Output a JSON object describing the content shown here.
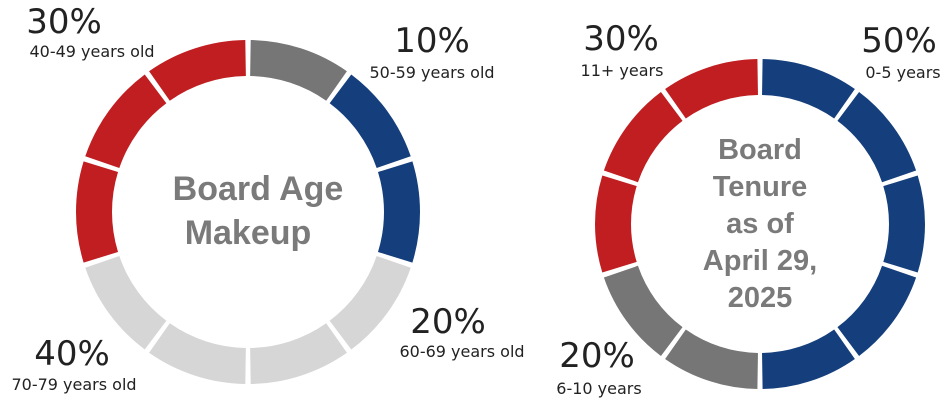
{
  "chart_data": [
    {
      "type": "pie",
      "title": [
        "Board Age",
        "Makeup"
      ],
      "segments_total": 10,
      "slices": [
        {
          "label": "50-59 years old",
          "value": 10,
          "display": "10%",
          "color": "#767676"
        },
        {
          "label": "60-69 years old",
          "value": 20,
          "display": "20%",
          "color": "#143f7c"
        },
        {
          "label": "70-79 years old",
          "value": 40,
          "display": "40%",
          "color": "#d6d6d6"
        },
        {
          "label": "40-49 years old",
          "value": 30,
          "display": "30%",
          "color": "#c01e21"
        }
      ]
    },
    {
      "type": "pie",
      "title": [
        "Board",
        "Tenure",
        "as of",
        "April 29,",
        "2025"
      ],
      "segments_total": 10,
      "slices": [
        {
          "label": "0-5 years",
          "value": 50,
          "display": "50%",
          "color": "#143f7c"
        },
        {
          "label": "6-10 years",
          "value": 20,
          "display": "20%",
          "color": "#767676"
        },
        {
          "label": "11+ years",
          "value": 30,
          "display": "30%",
          "color": "#c01e21"
        }
      ]
    }
  ]
}
